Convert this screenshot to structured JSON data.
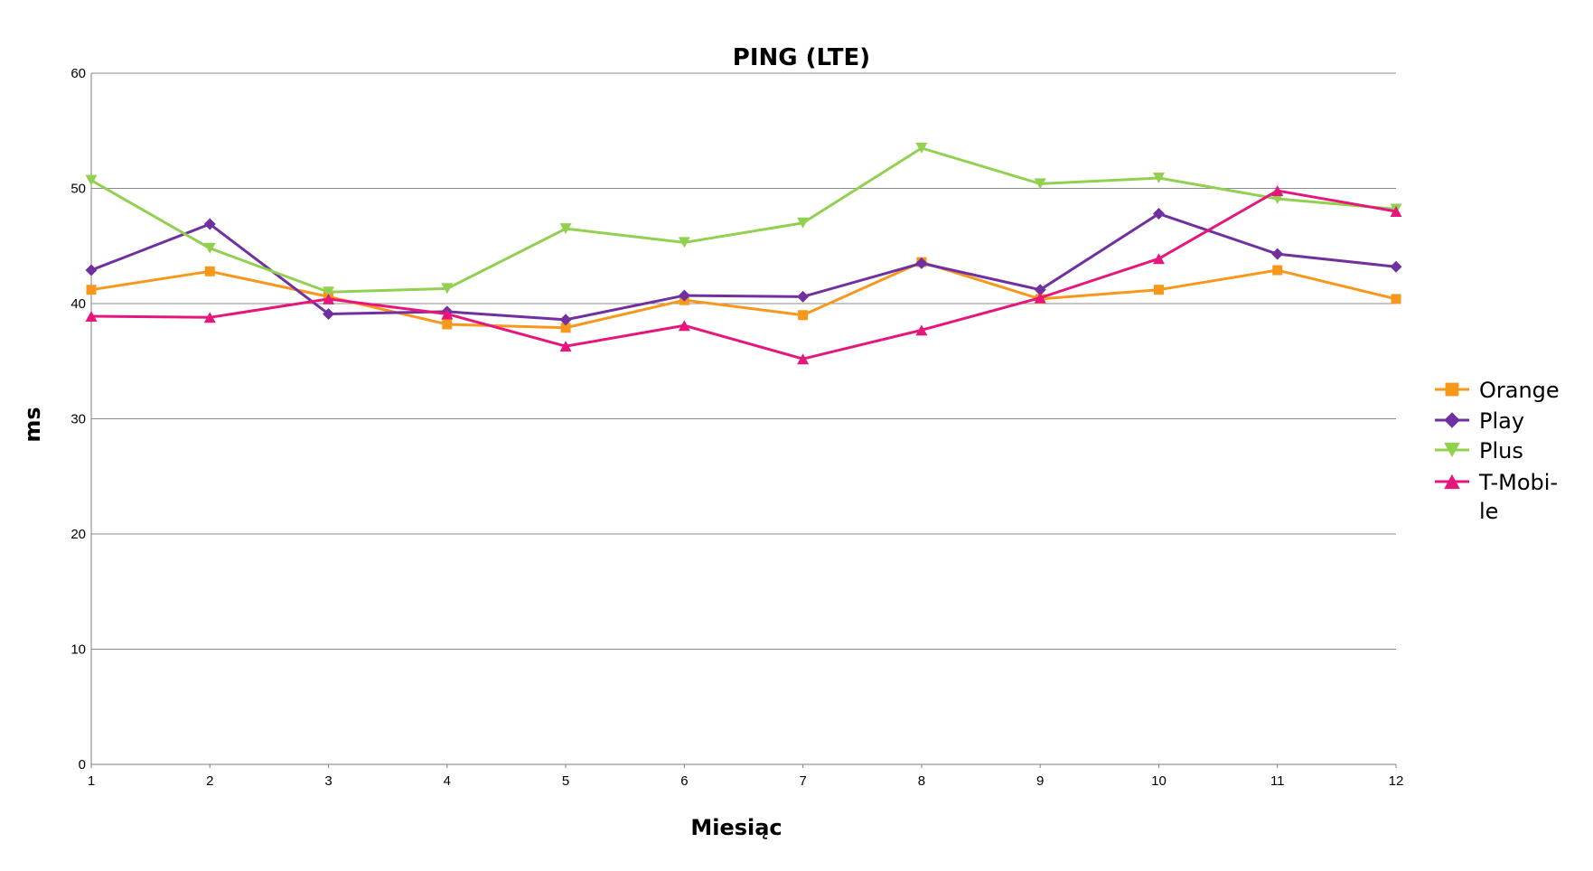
{
  "chart_data": {
    "type": "line",
    "title": "PING (LTE)",
    "xlabel": "Miesiąc",
    "ylabel": "ms",
    "x": [
      1,
      2,
      3,
      4,
      5,
      6,
      7,
      8,
      9,
      10,
      11,
      12
    ],
    "ylim": [
      0,
      60
    ],
    "yticks": [
      0,
      10,
      20,
      30,
      40,
      50,
      60
    ],
    "grid": true,
    "legend_position": "right",
    "series": [
      {
        "name": "Orange",
        "legend_lines": [
          "Orange"
        ],
        "color": "#f7981d",
        "marker": "square",
        "values": [
          41.2,
          42.8,
          40.6,
          38.2,
          37.9,
          40.3,
          39.0,
          43.6,
          40.4,
          41.2,
          42.9,
          40.4
        ]
      },
      {
        "name": "Play",
        "legend_lines": [
          "Play"
        ],
        "color": "#7030a0",
        "marker": "diamond",
        "values": [
          42.9,
          46.9,
          39.1,
          39.3,
          38.6,
          40.7,
          40.6,
          43.5,
          41.2,
          47.8,
          44.3,
          43.2
        ]
      },
      {
        "name": "Plus",
        "legend_lines": [
          "Plus"
        ],
        "color": "#92d050",
        "marker": "triangle-down",
        "values": [
          50.7,
          44.8,
          41.0,
          41.3,
          46.5,
          45.3,
          47.0,
          53.5,
          50.4,
          50.9,
          49.1,
          48.2
        ]
      },
      {
        "name": "T-Mobile",
        "legend_lines": [
          "T-Mobi-",
          "le"
        ],
        "color": "#e6177c",
        "marker": "triangle-up",
        "values": [
          38.9,
          38.8,
          40.4,
          39.1,
          36.3,
          38.1,
          35.2,
          37.7,
          40.5,
          43.9,
          49.8,
          48.0
        ]
      }
    ]
  }
}
